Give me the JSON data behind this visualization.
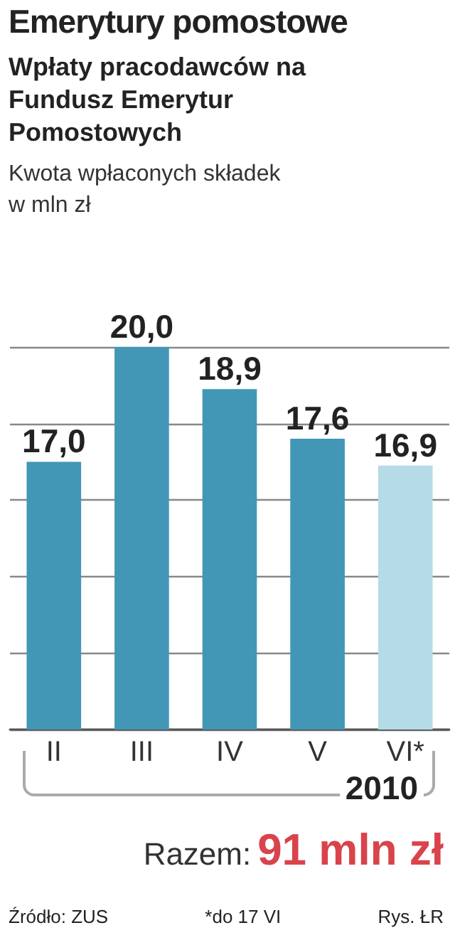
{
  "chart_data": {
    "type": "bar",
    "title": "Emerytury pomostowe",
    "subtitle": "Wpłaty pracodawców na Fundusz Emerytur Pomostowych",
    "categories": [
      "II",
      "III",
      "IV",
      "V",
      "VI*"
    ],
    "values": [
      17.0,
      20.0,
      18.9,
      17.6,
      16.9
    ],
    "value_labels": [
      "17,0",
      "20,0",
      "18,9",
      "17,6",
      "16,9"
    ],
    "colors": [
      "#4297b6",
      "#4297b6",
      "#4297b6",
      "#4297b6",
      "#b5dbe6"
    ],
    "ylim": [
      10,
      20
    ],
    "yticks": [
      {
        "value": 10,
        "label": null
      },
      {
        "value": 12,
        "label": null
      },
      {
        "value": 14,
        "label": null
      },
      {
        "value": 16,
        "label": null
      },
      {
        "value": 18,
        "label": null
      },
      {
        "value": 20,
        "label": null
      }
    ],
    "grid": "y",
    "tick_labels": "x",
    "annotations": [
      "Kwota wpłaconych składek w mln zł",
      "2010",
      "Razem:",
      "91 mln zł",
      "Źródło: ZUS",
      "*do 17 VI",
      "Rys. ŁR"
    ]
  }
}
